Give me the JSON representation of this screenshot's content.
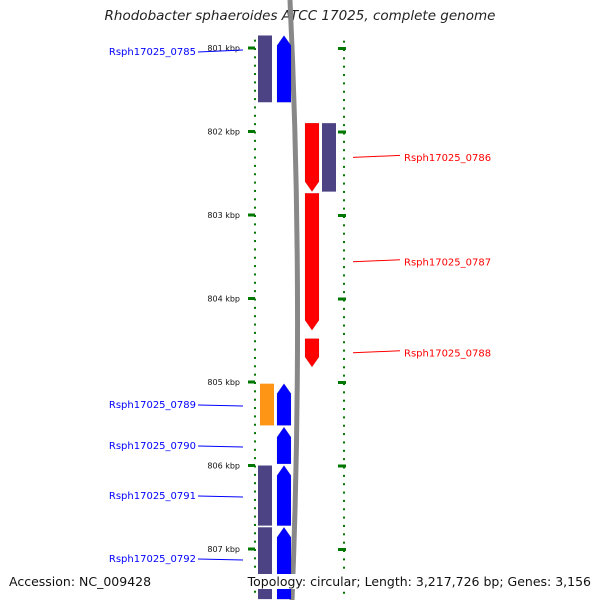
{
  "title": "Rhodobacter sphaeroides ATCC 17025, complete genome",
  "accession_label": "Accession: NC_009428",
  "topology_label": "Topology: circular; Length: 3,217,726 bp; Genes: 3,156",
  "colors": {
    "forward_cds": "#ff0000",
    "reverse_cds": "#0000ff",
    "reverse_homolog": "#3c3379",
    "forward_homolog": "#3c3379",
    "rna_feature": "#ff8c00",
    "backbone": "#888888",
    "ruler": "#007700"
  },
  "ruler_ticks": [
    "801 kbp",
    "802 kbp",
    "803 kbp",
    "804 kbp",
    "805 kbp",
    "806 kbp",
    "807 kbp"
  ],
  "genes": [
    {
      "name": "Rsph17025_0785",
      "strand": "reverse",
      "start_kbp": 800.85,
      "end_kbp": 801.65
    },
    {
      "name": "Rsph17025_0786",
      "strand": "forward",
      "start_kbp": 801.9,
      "end_kbp": 802.72
    },
    {
      "name": "Rsph17025_0787",
      "strand": "forward",
      "start_kbp": 802.74,
      "end_kbp": 804.38
    },
    {
      "name": "Rsph17025_0788",
      "strand": "forward",
      "start_kbp": 804.48,
      "end_kbp": 804.82
    },
    {
      "name": "Rsph17025_0789",
      "strand": "reverse",
      "start_kbp": 805.02,
      "end_kbp": 805.52
    },
    {
      "name": "Rsph17025_0790",
      "strand": "reverse",
      "start_kbp": 805.54,
      "end_kbp": 805.98
    },
    {
      "name": "Rsph17025_0791",
      "strand": "reverse",
      "start_kbp": 806.0,
      "end_kbp": 806.72
    },
    {
      "name": "Rsph17025_0792",
      "strand": "reverse",
      "start_kbp": 806.74,
      "end_kbp": 807.6
    }
  ]
}
